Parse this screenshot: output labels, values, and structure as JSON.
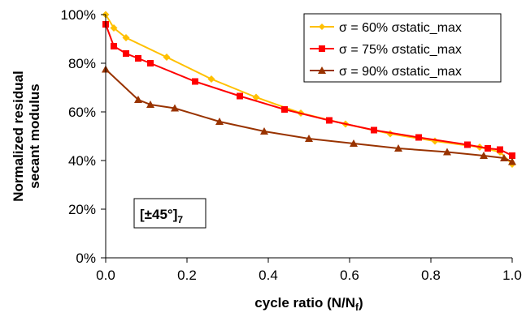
{
  "chart_data": {
    "type": "line",
    "xlabel": "cycle ratio (N/N",
    "xlabel_sub": "f",
    "xlabel_close": ")",
    "ylabel_line1": "Normalized residual",
    "ylabel_line2": "secant modulus",
    "xlim": [
      0,
      1
    ],
    "ylim": [
      0,
      100
    ],
    "x_ticks": [
      "0.0",
      "0.2",
      "0.4",
      "0.6",
      "0.8",
      "1.0"
    ],
    "y_ticks": [
      "0%",
      "20%",
      "40%",
      "60%",
      "80%",
      "100%"
    ],
    "grid": false,
    "legend_position": "top-right",
    "annotation": {
      "text": "[±45°]",
      "sub": "7"
    },
    "series": [
      {
        "name": "σ = 60% σstatic_max",
        "color": "#FFC000",
        "marker": "diamond",
        "points": [
          [
            0.0,
            100
          ],
          [
            0.02,
            94.5
          ],
          [
            0.05,
            90.5
          ],
          [
            0.15,
            82.5
          ],
          [
            0.26,
            73.5
          ],
          [
            0.37,
            66
          ],
          [
            0.48,
            59.5
          ],
          [
            0.59,
            55
          ],
          [
            0.7,
            51
          ],
          [
            0.81,
            48
          ],
          [
            0.92,
            45.5
          ],
          [
            0.97,
            43.5
          ],
          [
            1.0,
            38.5
          ]
        ]
      },
      {
        "name": "σ = 75% σstatic_max",
        "color": "#FF0000",
        "marker": "square",
        "points": [
          [
            0.0,
            96
          ],
          [
            0.02,
            87
          ],
          [
            0.05,
            84
          ],
          [
            0.08,
            82
          ],
          [
            0.11,
            80
          ],
          [
            0.22,
            72.5
          ],
          [
            0.33,
            66.5
          ],
          [
            0.44,
            61
          ],
          [
            0.55,
            56.5
          ],
          [
            0.66,
            52.5
          ],
          [
            0.77,
            49.5
          ],
          [
            0.89,
            46.5
          ],
          [
            0.94,
            45
          ],
          [
            0.97,
            44.5
          ],
          [
            1.0,
            42
          ]
        ]
      },
      {
        "name": "σ = 90% σstatic_max",
        "color": "#993300",
        "marker": "triangle",
        "points": [
          [
            0.0,
            77.5
          ],
          [
            0.08,
            65
          ],
          [
            0.11,
            63
          ],
          [
            0.17,
            61.5
          ],
          [
            0.28,
            56
          ],
          [
            0.39,
            52
          ],
          [
            0.5,
            49
          ],
          [
            0.61,
            47
          ],
          [
            0.72,
            45
          ],
          [
            0.84,
            43.5
          ],
          [
            0.93,
            42
          ],
          [
            0.98,
            41
          ],
          [
            1.0,
            39.5
          ]
        ]
      }
    ]
  }
}
